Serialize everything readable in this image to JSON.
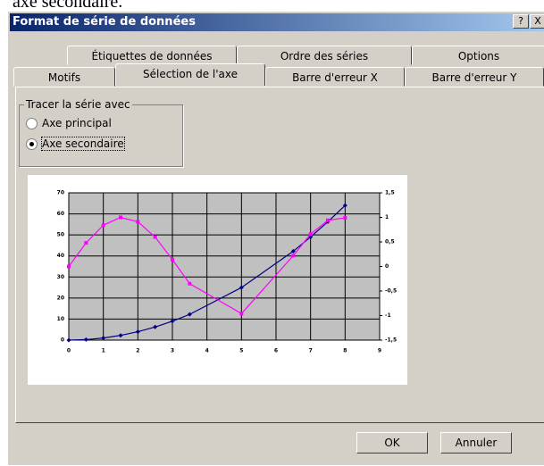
{
  "top_text": "axe secondaire.",
  "window": {
    "title": "Format de série de données",
    "help": "?",
    "close": "X"
  },
  "tabs": {
    "row1": [
      "Étiquettes de données",
      "Ordre des séries",
      "Options"
    ],
    "row2": [
      "Motifs",
      "Sélection de l'axe",
      "Barre d'erreur X",
      "Barre d'erreur Y"
    ]
  },
  "group": {
    "title": "Tracer la série avec",
    "options": [
      {
        "label": "Axe principal",
        "checked": false
      },
      {
        "label": "Axe secondaire",
        "checked": true
      }
    ]
  },
  "chart_data": {
    "type": "line",
    "x": [
      0,
      0.5,
      1,
      1.5,
      2,
      2.5,
      3,
      3.5,
      5,
      6.5,
      7,
      7.5,
      8
    ],
    "xlim": [
      0,
      9
    ],
    "xticks": [
      0,
      1,
      2,
      3,
      4,
      5,
      6,
      7,
      8,
      9
    ],
    "ylim": [
      0,
      70
    ],
    "yticks": [
      0,
      10,
      20,
      30,
      40,
      50,
      60,
      70
    ],
    "y2lim": [
      -1.5,
      1.5
    ],
    "y2ticks": [
      {
        "value": -1.5,
        "label": "-1,5"
      },
      -1,
      {
        "value": -0.5,
        "label": "-0,5"
      },
      0,
      {
        "value": 0.5,
        "label": "0,5"
      },
      1,
      {
        "value": 1.5,
        "label": "1,5"
      }
    ],
    "grid": true,
    "series": [
      {
        "color": "#000080",
        "values": [
          0,
          0.25,
          1,
          2.25,
          4,
          6.25,
          9,
          12.25,
          25,
          42.25,
          49,
          56.25,
          64
        ]
      },
      {
        "color": "#ff00ff",
        "axis": "y2",
        "values": [
          0,
          0.48,
          0.84,
          1.0,
          0.91,
          0.6,
          0.14,
          -0.35,
          -0.96,
          0.22,
          0.66,
          0.94,
          0.99
        ]
      }
    ]
  },
  "buttons": [
    "OK",
    "Annuler"
  ]
}
